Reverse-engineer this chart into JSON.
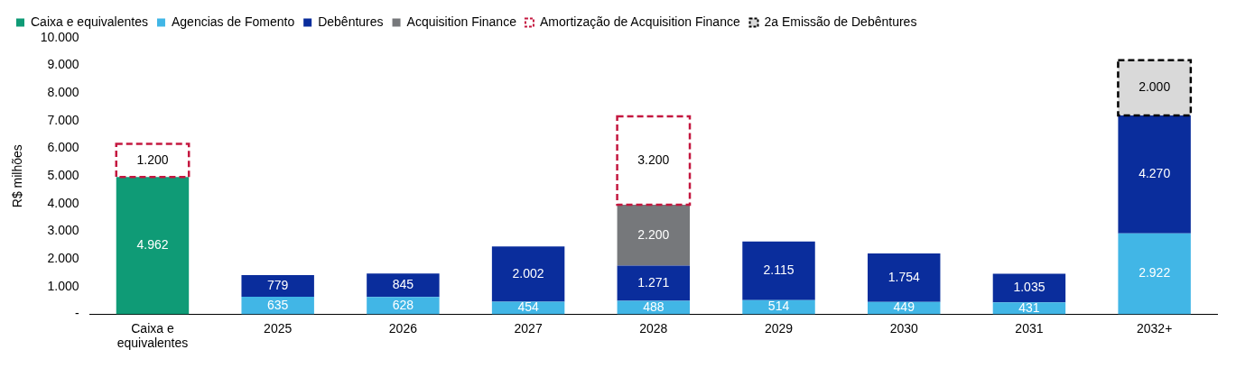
{
  "chart_data": {
    "type": "bar",
    "stacked": true,
    "ylabel": "R$ milhões",
    "categories": [
      "Caixa e equivalentes",
      "2025",
      "2026",
      "2027",
      "2028",
      "2029",
      "2030",
      "2031",
      "2032+"
    ],
    "ylim": [
      0,
      10000
    ],
    "yticks": [
      {
        "value": 0,
        "label": "-"
      },
      {
        "value": 1000,
        "label": "1.000"
      },
      {
        "value": 2000,
        "label": "2.000"
      },
      {
        "value": 3000,
        "label": "3.000"
      },
      {
        "value": 4000,
        "label": "4.000"
      },
      {
        "value": 5000,
        "label": "5.000"
      },
      {
        "value": 6000,
        "label": "6.000"
      },
      {
        "value": 7000,
        "label": "7.000"
      },
      {
        "value": 8000,
        "label": "8.000"
      },
      {
        "value": 9000,
        "label": "9.000"
      },
      {
        "value": 10000,
        "label": "10.000"
      }
    ],
    "grid": false,
    "legend": "top",
    "series": [
      {
        "name": "Caixa e equivalentes",
        "color": "#0f9b76",
        "values": [
          4962,
          null,
          null,
          null,
          null,
          null,
          null,
          null,
          null
        ],
        "value_labels": [
          "4.962",
          null,
          null,
          null,
          null,
          null,
          null,
          null,
          null
        ]
      },
      {
        "name": "Agencias de Fomento",
        "color": "#41b6e6",
        "values": [
          null,
          635,
          628,
          454,
          488,
          514,
          449,
          431,
          2922
        ],
        "value_labels": [
          null,
          "635",
          "628",
          "454",
          "488",
          "514",
          "449",
          "431",
          "2.922"
        ]
      },
      {
        "name": "Debêntures",
        "color": "#0a2d9c",
        "values": [
          null,
          779,
          845,
          2002,
          1271,
          2115,
          1754,
          1035,
          4270
        ],
        "value_labels": [
          null,
          "779",
          "845",
          "2.002",
          "1.271",
          "2.115",
          "1.754",
          "1.035",
          "4.270"
        ]
      },
      {
        "name": "Acquisition Finance",
        "color": "#76787b",
        "values": [
          null,
          null,
          null,
          null,
          2200,
          null,
          null,
          null,
          null
        ],
        "value_labels": [
          null,
          null,
          null,
          null,
          "2.200",
          null,
          null,
          null,
          null
        ]
      },
      {
        "name": "Amortização de Acquisition Finance",
        "color": "#c4173f",
        "line_style": "dashed",
        "values": [
          1200,
          null,
          null,
          null,
          3200,
          null,
          null,
          null,
          null
        ],
        "value_labels": [
          "1.200",
          null,
          null,
          null,
          "3.200",
          null,
          null,
          null,
          null
        ]
      },
      {
        "name": "2a Emissão de Debêntures",
        "color": "#d9d9d9",
        "line_style": "dashed",
        "values": [
          null,
          null,
          null,
          null,
          null,
          null,
          null,
          null,
          2000
        ],
        "value_labels": [
          null,
          null,
          null,
          null,
          null,
          null,
          null,
          null,
          "2.000"
        ]
      }
    ]
  }
}
